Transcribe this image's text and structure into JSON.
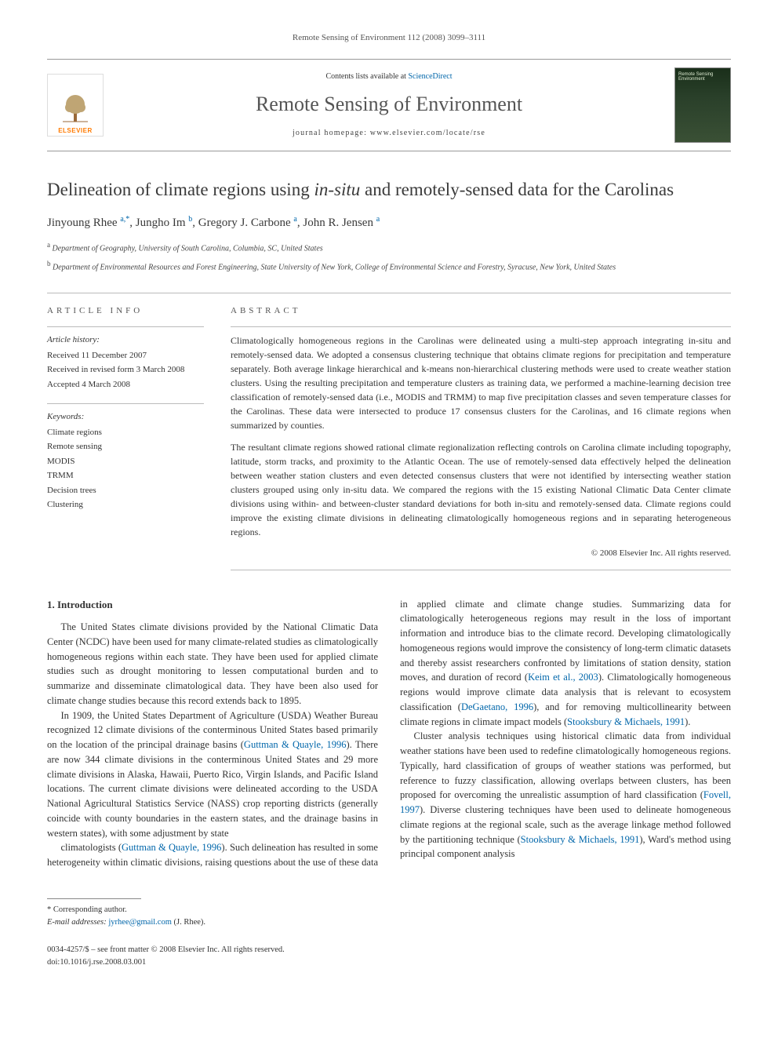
{
  "running_head": "Remote Sensing of Environment 112 (2008) 3099–3111",
  "masthead": {
    "publisher_name": "ELSEVIER",
    "contents_prefix": "Contents lists available at ",
    "contents_link": "ScienceDirect",
    "journal_title": "Remote Sensing of Environment",
    "homepage_prefix": "journal homepage: ",
    "homepage_url": "www.elsevier.com/locate/rse",
    "cover_label": "Remote Sensing Environment"
  },
  "title_pre": "Delineation of climate regions using ",
  "title_em": "in-situ",
  "title_post": " and remotely-sensed data for the Carolinas",
  "authors_html": "Jinyoung Rhee <sup>a,*</sup>, Jungho Im <sup>b</sup>, Gregory J. Carbone <sup>a</sup>, John R. Jensen <sup>a</sup>",
  "affiliations": [
    {
      "sup": "a",
      "text": "Department of Geography, University of South Carolina, Columbia, SC, United States"
    },
    {
      "sup": "b",
      "text": "Department of Environmental Resources and Forest Engineering, State University of New York, College of Environmental Science and Forestry, Syracuse, New York, United States"
    }
  ],
  "info_labels": {
    "article_info": "ARTICLE INFO",
    "abstract": "ABSTRACT"
  },
  "history": {
    "label": "Article history:",
    "lines": [
      "Received 11 December 2007",
      "Received in revised form 3 March 2008",
      "Accepted 4 March 2008"
    ]
  },
  "keywords": {
    "label": "Keywords:",
    "items": [
      "Climate regions",
      "Remote sensing",
      "MODIS",
      "TRMM",
      "Decision trees",
      "Clustering"
    ]
  },
  "abstract": {
    "p1": "Climatologically homogeneous regions in the Carolinas were delineated using a multi-step approach integrating in-situ and remotely-sensed data. We adopted a consensus clustering technique that obtains climate regions for precipitation and temperature separately. Both average linkage hierarchical and k-means non-hierarchical clustering methods were used to create weather station clusters. Using the resulting precipitation and temperature clusters as training data, we performed a machine-learning decision tree classification of remotely-sensed data (i.e., MODIS and TRMM) to map five precipitation classes and seven temperature classes for the Carolinas. These data were intersected to produce 17 consensus clusters for the Carolinas, and 16 climate regions when summarized by counties.",
    "p2": "The resultant climate regions showed rational climate regionalization reflecting controls on Carolina climate including topography, latitude, storm tracks, and proximity to the Atlantic Ocean. The use of remotely-sensed data effectively helped the delineation between weather station clusters and even detected consensus clusters that were not identified by intersecting weather station clusters grouped using only in-situ data. We compared the regions with the 15 existing National Climatic Data Center climate divisions using within- and between-cluster standard deviations for both in-situ and remotely-sensed data. Climate regions could improve the existing climate divisions in delineating climatologically homogeneous regions and in separating heterogeneous regions.",
    "copyright": "© 2008 Elsevier Inc. All rights reserved."
  },
  "body": {
    "heading1": "1. Introduction",
    "p1": "The United States climate divisions provided by the National Climatic Data Center (NCDC) have been used for many climate-related studies as climatologically homogeneous regions within each state. They have been used for applied climate studies such as drought monitoring to lessen computational burden and to summarize and disseminate climatological data. They have been also used for climate change studies because this record extends back to 1895.",
    "p2_a": "In 1909, the United States Department of Agriculture (USDA) Weather Bureau recognized 12 climate divisions of the conterminous United States based primarily on the location of the principal drainage basins (",
    "p2_ref": "Guttman & Quayle, 1996",
    "p2_b": "). There are now 344 climate divisions in the conterminous United States and 29 more climate divisions in Alaska, Hawaii, Puerto Rico, Virgin Islands, and Pacific Island locations. The current climate divisions were delineated according to the USDA National Agricultural Statistics Service (NASS) crop reporting districts (generally coincide with county boundaries in the eastern states, and the drainage basins in western states), with some adjustment by state",
    "p3_a": "climatologists (",
    "p3_ref1": "Guttman & Quayle, 1996",
    "p3_b": "). Such delineation has resulted in some heterogeneity within climatic divisions, raising questions about the use of these data in applied climate and climate change studies. Summarizing data for climatologically heterogeneous regions may result in the loss of important information and introduce bias to the climate record. Developing climatologically homogeneous regions would improve the consistency of long-term climatic datasets and thereby assist researchers confronted by limitations of station density, station moves, and duration of record (",
    "p3_ref2": "Keim et al., 2003",
    "p3_c": "). Climatologically homogeneous regions would improve climate data analysis that is relevant to ecosystem classification (",
    "p3_ref3": "DeGaetano, 1996",
    "p3_d": "), and for removing multicollinearity between climate regions in climate impact models (",
    "p3_ref4": "Stooksbury & Michaels, 1991",
    "p3_e": ").",
    "p4_a": "Cluster analysis techniques using historical climatic data from individual weather stations have been used to redefine climatologically homogeneous regions. Typically, hard classification of groups of weather stations was performed, but reference to fuzzy classification, allowing overlaps between clusters, has been proposed for overcoming the unrealistic assumption of hard classification (",
    "p4_ref1": "Fovell, 1997",
    "p4_b": "). Diverse clustering techniques have been used to delineate homogeneous climate regions at the regional scale, such as the average linkage method followed by the partitioning technique (",
    "p4_ref2": "Stooksbury & Michaels, 1991",
    "p4_c": "), Ward's method using principal component analysis"
  },
  "footnote": {
    "corr": "* Corresponding author.",
    "email_label": "E-mail addresses: ",
    "email": "jyrhee@gmail.com",
    "email_suffix": " (J. Rhee)."
  },
  "footer": {
    "issn_line": "0034-4257/$ – see front matter © 2008 Elsevier Inc. All rights reserved.",
    "doi_line": "doi:10.1016/j.rse.2008.03.001"
  },
  "colors": {
    "link": "#0066aa",
    "publisher_orange": "#ff7a00",
    "rule": "#bbbbbb",
    "text": "#333333"
  },
  "typography": {
    "body_font": "Georgia, 'Times New Roman', serif",
    "body_size_pt": 9.5,
    "title_size_pt": 17,
    "journal_title_size_pt": 20
  }
}
